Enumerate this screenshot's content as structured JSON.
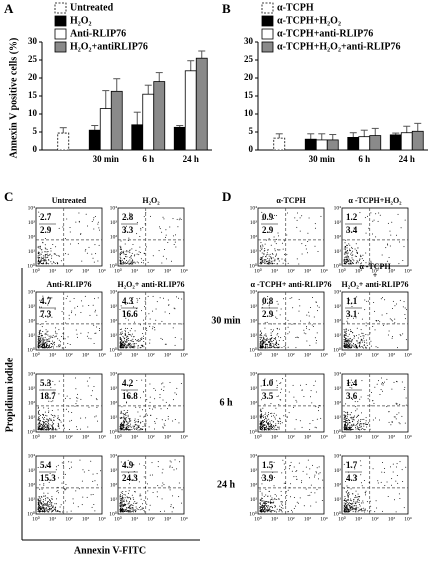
{
  "chart_data": [
    {
      "type": "bar",
      "panel": "A",
      "y_label": "Annexin V positive cells (%)",
      "categories": [
        null,
        "30 min",
        "6 h",
        "24 h"
      ],
      "ylim": [
        0,
        30
      ],
      "yticks": [
        0,
        5,
        10,
        15,
        20,
        25,
        30
      ],
      "series": [
        {
          "name": "Untreated",
          "color": "#ffffff",
          "border": "dashed",
          "values": [
            4.7,
            null,
            null,
            null
          ],
          "errors": [
            1.5,
            null,
            null,
            null
          ]
        },
        {
          "name": "H₂O₂",
          "color": "#000000",
          "border": "solid",
          "values": [
            null,
            5.5,
            7,
            6.3
          ],
          "errors": [
            null,
            1.3,
            3.5,
            0.5
          ]
        },
        {
          "name": "Anti-RLIP76",
          "color": "#ffffff",
          "border": "solid",
          "values": [
            null,
            11.5,
            15.5,
            22
          ],
          "errors": [
            null,
            5,
            2.5,
            2.8
          ]
        },
        {
          "name": "H₂O₂+antiRLIP76",
          "color": "#8a8a8a",
          "border": "solid",
          "values": [
            null,
            16.3,
            19,
            25.5
          ],
          "errors": [
            null,
            3.5,
            2.5,
            2
          ]
        }
      ]
    },
    {
      "type": "bar",
      "panel": "B",
      "categories": [
        null,
        "30 min",
        "6 h",
        "24 h"
      ],
      "ylim": [
        0,
        30
      ],
      "yticks": [
        0,
        5,
        10,
        15,
        20,
        25,
        30
      ],
      "series": [
        {
          "name": "α-TCPH",
          "color": "#ffffff",
          "border": "dashed",
          "values": [
            3.3,
            null,
            null,
            null
          ],
          "errors": [
            1.2,
            null,
            null,
            null
          ]
        },
        {
          "name": "α-TCPH+H₂O₂",
          "color": "#000000",
          "border": "solid",
          "values": [
            null,
            3,
            3.5,
            4.2
          ],
          "errors": [
            null,
            1.5,
            1.3,
            0.5
          ]
        },
        {
          "name": "α-TCPH+anti-RLIP76",
          "color": "#ffffff",
          "border": "solid",
          "values": [
            null,
            2.8,
            3.7,
            4.8
          ],
          "errors": [
            null,
            1.7,
            1.8,
            1.8
          ]
        },
        {
          "name": "α-TCPH+H₂O₂+anti-RLIP76",
          "color": "#8a8a8a",
          "border": "solid",
          "values": [
            null,
            2.8,
            4,
            5.2
          ],
          "errors": [
            null,
            1.5,
            2,
            2.2
          ]
        }
      ]
    }
  ],
  "flow": {
    "y_label": "Propidium iodide",
    "x_label": "Annexin V-FITC",
    "ticks": [
      "10⁰",
      "10¹",
      "10²",
      "10³",
      "10⁴"
    ],
    "row_labels": [
      "30 min",
      "6 h",
      "24 h"
    ],
    "panels": [
      {
        "letter": "C",
        "rows": [
          [
            {
              "title": [
                "Untreated"
              ],
              "upper": "2.7",
              "lower": "2.9"
            },
            {
              "title": [
                "H₂O₂"
              ],
              "upper": "2.8",
              "lower": "3.3"
            }
          ],
          [
            {
              "title": [
                "Anti-RLIP76"
              ],
              "upper": "4.7",
              "lower": "7.3"
            },
            {
              "title": [
                "H₂O₂+ anti-RLIP76"
              ],
              "upper": "4.3",
              "lower": "16.6"
            }
          ],
          [
            {
              "upper": "5.3",
              "lower": "18.7"
            },
            {
              "upper": "4.2",
              "lower": "16.8"
            }
          ],
          [
            {
              "upper": "5.4",
              "lower": "15.3"
            },
            {
              "upper": "4.9",
              "lower": "24.3"
            }
          ]
        ]
      },
      {
        "letter": "D",
        "rows": [
          [
            {
              "title": [
                "α-TCPH"
              ],
              "upper": "0.9",
              "lower": "2.9"
            },
            {
              "title": [
                "α -TCPH+H₂O₂"
              ],
              "upper": "1.2",
              "lower": "3.4"
            }
          ],
          [
            {
              "title": [
                "α -TCPH+ anti-RLIP76"
              ],
              "upper": "0.8",
              "lower": "2.9"
            },
            {
              "title": [
                "α -TCPH",
                "+",
                "H₂O₂+ anti-RLIP76"
              ],
              "upper": "1.1",
              "lower": "3.1"
            }
          ],
          [
            {
              "upper": "1.0",
              "lower": "3.5"
            },
            {
              "upper": "1.4",
              "lower": "3.6"
            }
          ],
          [
            {
              "upper": "1.5",
              "lower": "3.9"
            },
            {
              "upper": "1.7",
              "lower": "4.3"
            }
          ]
        ]
      }
    ]
  }
}
